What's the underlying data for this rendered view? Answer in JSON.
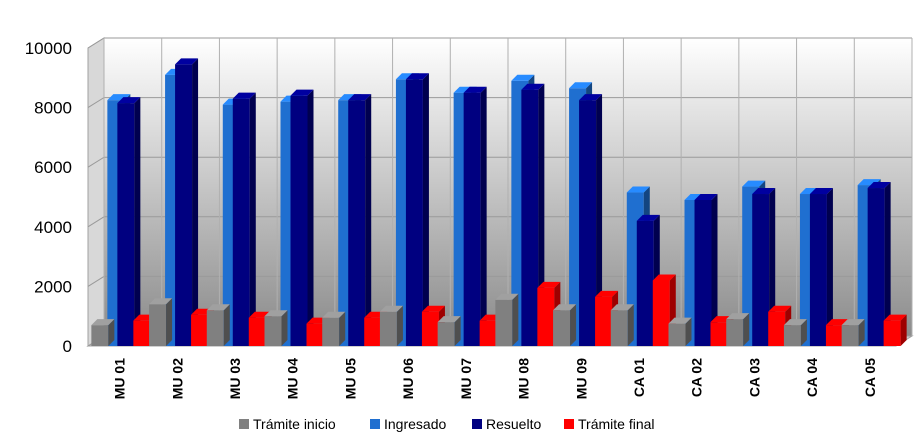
{
  "chart_data": {
    "type": "bar",
    "title": "",
    "xlabel": "",
    "ylabel": "",
    "ylim": [
      0,
      10000
    ],
    "yticks": [
      0,
      2000,
      4000,
      6000,
      8000,
      10000
    ],
    "grid": true,
    "legend_position": "bottom",
    "categories": [
      "MU 01",
      "MU 02",
      "MU 03",
      "MU 04",
      "MU 05",
      "MU 06",
      "MU 07",
      "MU 08",
      "MU 09",
      "CA 01",
      "CA 02",
      "CA 03",
      "CA 04",
      "CA 05"
    ],
    "series": [
      {
        "name": "Trámite inicio",
        "color": "#808080",
        "values": [
          700,
          1400,
          1200,
          1000,
          950,
          1150,
          800,
          1550,
          1200,
          1200,
          750,
          900,
          700,
          700
        ]
      },
      {
        "name": "Ingresado",
        "color": "#1F6FD0",
        "values": [
          8250,
          9100,
          8100,
          8200,
          8250,
          8950,
          8500,
          8900,
          8650,
          5150,
          4900,
          5350,
          5100,
          5400
        ]
      },
      {
        "name": "Resuelto",
        "color": "#000080",
        "values": [
          8150,
          9450,
          8300,
          8400,
          8250,
          8950,
          8500,
          8600,
          8250,
          4200,
          4900,
          5100,
          5100,
          5300
        ]
      },
      {
        "name": "Trámite final",
        "color": "#FF0000",
        "values": [
          850,
          1050,
          950,
          750,
          950,
          1150,
          850,
          1950,
          1650,
          2200,
          800,
          1150,
          700,
          850
        ]
      }
    ]
  }
}
